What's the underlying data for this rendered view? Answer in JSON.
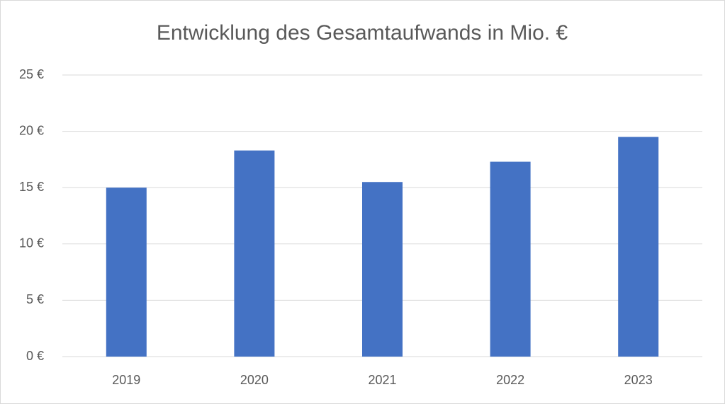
{
  "chart_data": {
    "type": "bar",
    "title": "Entwicklung des Gesamtaufwands in Mio. €",
    "categories": [
      "2019",
      "2020",
      "2021",
      "2022",
      "2023"
    ],
    "values": [
      15.0,
      18.3,
      15.5,
      17.3,
      19.5
    ],
    "color": "#4472c4",
    "ylim": [
      0,
      25
    ],
    "yticks": [
      {
        "value": 0,
        "label": "0 €"
      },
      {
        "value": 5,
        "label": "5 €"
      },
      {
        "value": 10,
        "label": "10 €"
      },
      {
        "value": 15,
        "label": "15 €"
      },
      {
        "value": 20,
        "label": "20 €"
      },
      {
        "value": 25,
        "label": "25 €"
      }
    ],
    "grid": true
  }
}
